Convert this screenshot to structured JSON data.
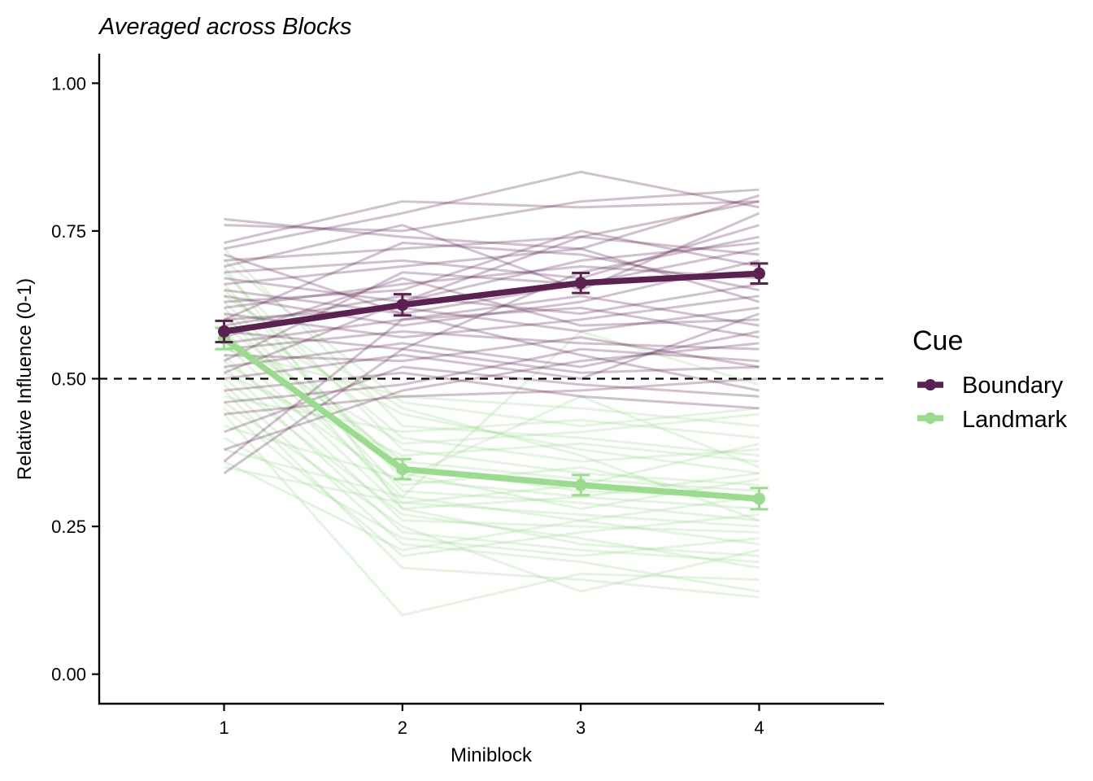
{
  "chart_data": {
    "type": "line",
    "title": "Averaged across Blocks",
    "xlabel": "Miniblock",
    "ylabel": "Relative Influence (0-1)",
    "x": [
      1,
      2,
      3,
      4
    ],
    "x_tick_labels": [
      "1",
      "2",
      "3",
      "4"
    ],
    "xlim": [
      0.3,
      4.7
    ],
    "ylim": [
      -0.05,
      1.05
    ],
    "y_ticks": [
      0.0,
      0.25,
      0.5,
      0.75,
      1.0
    ],
    "y_tick_labels": [
      "0.00",
      "0.25",
      "0.50",
      "0.75",
      "1.00"
    ],
    "reference_line": {
      "y": 0.5,
      "style": "dashed"
    },
    "grid": false,
    "legend": {
      "title": "Cue",
      "position": "right",
      "entries": [
        "Boundary",
        "Landmark"
      ]
    },
    "series": [
      {
        "name": "Boundary",
        "color": "#5b2150",
        "values": [
          0.58,
          0.625,
          0.662,
          0.678
        ],
        "error": [
          0.018,
          0.018,
          0.017,
          0.017
        ]
      },
      {
        "name": "Landmark",
        "color": "#99dc8e",
        "values": [
          0.568,
          0.347,
          0.32,
          0.297
        ],
        "error": [
          0.018,
          0.017,
          0.017,
          0.018
        ]
      }
    ],
    "individual_lines": {
      "Boundary": [
        [
          0.77,
          0.74,
          0.72,
          0.81
        ],
        [
          0.76,
          0.75,
          0.8,
          0.82
        ],
        [
          0.73,
          0.8,
          0.79,
          0.8
        ],
        [
          0.72,
          0.78,
          0.85,
          0.79
        ],
        [
          0.7,
          0.72,
          0.74,
          0.71
        ],
        [
          0.68,
          0.7,
          0.67,
          0.76
        ],
        [
          0.67,
          0.63,
          0.7,
          0.73
        ],
        [
          0.66,
          0.69,
          0.72,
          0.63
        ],
        [
          0.65,
          0.61,
          0.66,
          0.68
        ],
        [
          0.64,
          0.59,
          0.63,
          0.7
        ],
        [
          0.62,
          0.66,
          0.69,
          0.67
        ],
        [
          0.61,
          0.57,
          0.6,
          0.64
        ],
        [
          0.6,
          0.62,
          0.58,
          0.62
        ],
        [
          0.59,
          0.64,
          0.61,
          0.66
        ],
        [
          0.58,
          0.55,
          0.68,
          0.74
        ],
        [
          0.57,
          0.67,
          0.59,
          0.6
        ],
        [
          0.56,
          0.6,
          0.62,
          0.57
        ],
        [
          0.55,
          0.58,
          0.56,
          0.55
        ],
        [
          0.54,
          0.53,
          0.57,
          0.52
        ],
        [
          0.52,
          0.56,
          0.52,
          0.58
        ],
        [
          0.5,
          0.54,
          0.5,
          0.61
        ],
        [
          0.48,
          0.51,
          0.47,
          0.45
        ],
        [
          0.46,
          0.49,
          0.55,
          0.53
        ],
        [
          0.44,
          0.47,
          0.48,
          0.5
        ],
        [
          0.41,
          0.52,
          0.49,
          0.47
        ],
        [
          0.38,
          0.48,
          0.53,
          0.56
        ],
        [
          0.36,
          0.6,
          0.64,
          0.59
        ],
        [
          0.34,
          0.55,
          0.51,
          0.52
        ],
        [
          0.69,
          0.76,
          0.65,
          0.78
        ],
        [
          0.63,
          0.65,
          0.75,
          0.69
        ],
        [
          0.6,
          0.73,
          0.71,
          0.65
        ],
        [
          0.53,
          0.68,
          0.66,
          0.72
        ],
        [
          0.51,
          0.63,
          0.74,
          0.8
        ],
        [
          0.71,
          0.61,
          0.54,
          0.48
        ]
      ],
      "Landmark": [
        [
          0.72,
          0.42,
          0.4,
          0.37
        ],
        [
          0.7,
          0.46,
          0.42,
          0.45
        ],
        [
          0.68,
          0.38,
          0.34,
          0.32
        ],
        [
          0.66,
          0.33,
          0.3,
          0.28
        ],
        [
          0.65,
          0.4,
          0.36,
          0.38
        ],
        [
          0.63,
          0.35,
          0.31,
          0.3
        ],
        [
          0.62,
          0.31,
          0.29,
          0.26
        ],
        [
          0.61,
          0.29,
          0.27,
          0.25
        ],
        [
          0.6,
          0.44,
          0.38,
          0.34
        ],
        [
          0.59,
          0.36,
          0.33,
          0.31
        ],
        [
          0.58,
          0.3,
          0.26,
          0.22
        ],
        [
          0.57,
          0.34,
          0.28,
          0.33
        ],
        [
          0.56,
          0.28,
          0.22,
          0.2
        ],
        [
          0.55,
          0.47,
          0.45,
          0.42
        ],
        [
          0.54,
          0.26,
          0.25,
          0.24
        ],
        [
          0.53,
          0.32,
          0.35,
          0.29
        ],
        [
          0.52,
          0.24,
          0.21,
          0.19
        ],
        [
          0.51,
          0.37,
          0.39,
          0.36
        ],
        [
          0.5,
          0.27,
          0.23,
          0.18
        ],
        [
          0.49,
          0.22,
          0.19,
          0.14
        ],
        [
          0.48,
          0.18,
          0.16,
          0.13
        ],
        [
          0.47,
          0.41,
          0.43,
          0.4
        ],
        [
          0.46,
          0.25,
          0.14,
          0.21
        ],
        [
          0.45,
          0.2,
          0.24,
          0.27
        ],
        [
          0.44,
          0.1,
          0.17,
          0.16
        ],
        [
          0.42,
          0.33,
          0.47,
          0.35
        ],
        [
          0.4,
          0.23,
          0.2,
          0.23
        ],
        [
          0.38,
          0.3,
          0.58,
          0.49
        ],
        [
          0.36,
          0.21,
          0.26,
          0.3
        ],
        [
          0.35,
          0.29,
          0.32,
          0.39
        ],
        [
          0.57,
          0.39,
          0.41,
          0.44
        ],
        [
          0.64,
          0.45,
          0.37,
          0.26
        ],
        [
          0.69,
          0.28,
          0.3,
          0.34
        ]
      ]
    }
  }
}
